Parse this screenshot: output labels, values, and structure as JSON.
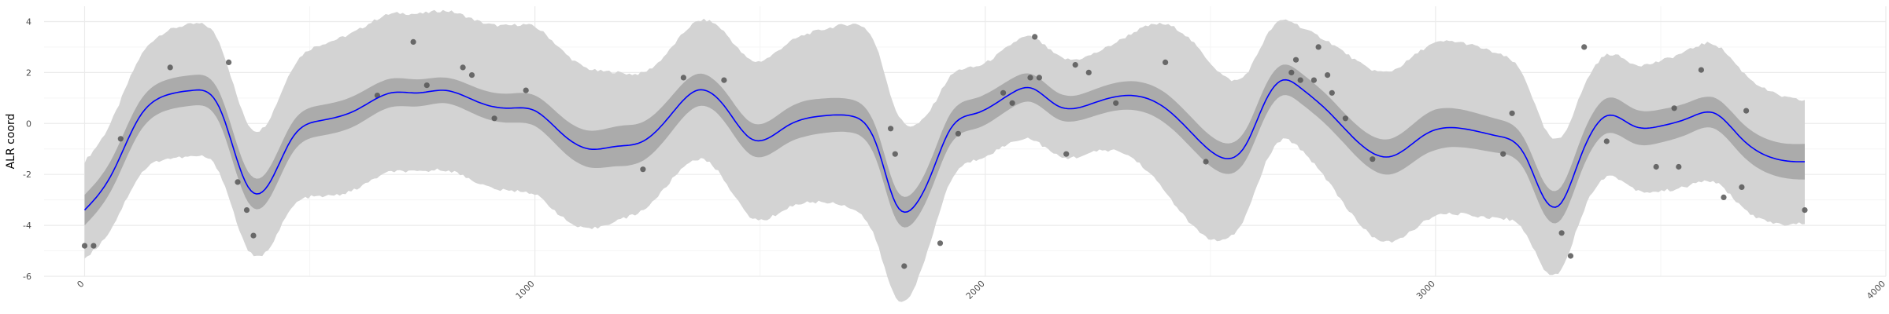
{
  "chart_data": {
    "type": "line",
    "title": "",
    "xlabel": "",
    "ylabel": "ALR coord",
    "xlim": [
      -90,
      4000
    ],
    "ylim": [
      -6,
      4.6
    ],
    "x_ticks": [
      0,
      1000,
      2000,
      3000,
      4000
    ],
    "x_tick_labels": [
      "0",
      "1000",
      "2000",
      "3000",
      "4000"
    ],
    "y_ticks": [
      -6,
      -4,
      -2,
      0,
      2,
      4
    ],
    "y_tick_labels": [
      "-6",
      "-4",
      "-2",
      "0",
      "2",
      "4"
    ],
    "grid": true,
    "colors": {
      "mean_line": "#0000ff",
      "inner_band": "#ababab",
      "outer_band": "#d3d3d3",
      "points": "#555555",
      "grid_major": "#ebebeb",
      "grid_minor": "#f5f5f5"
    },
    "series": [
      {
        "role": "mean",
        "x": [
          0,
          60,
          120,
          180,
          240,
          300,
          360,
          400,
          460,
          520,
          600,
          680,
          740,
          800,
          880,
          940,
          1000,
          1060,
          1120,
          1180,
          1240,
          1300,
          1360,
          1420,
          1480,
          1560,
          1640,
          1700,
          1760,
          1800,
          1840,
          1880,
          1920,
          1980,
          2060,
          2100,
          2160,
          2240,
          2320,
          2400,
          2460,
          2520,
          2580,
          2620,
          2660,
          2700,
          2760,
          2820,
          2900,
          2980,
          3060,
          3140,
          3200,
          3240,
          3280,
          3320,
          3380,
          3440,
          3500,
          3560,
          3620,
          3680,
          3740,
          3800,
          3820
        ],
        "y": [
          -3.4,
          -2.0,
          0.2,
          1.1,
          1.3,
          0.6,
          -2.4,
          -2.6,
          -0.6,
          0.1,
          0.5,
          1.2,
          1.2,
          1.3,
          0.8,
          0.6,
          0.5,
          -0.4,
          -1.0,
          -0.9,
          -0.7,
          0.3,
          1.3,
          0.7,
          -0.6,
          -0.1,
          0.3,
          0.3,
          -0.9,
          -3.1,
          -3.3,
          -2.0,
          -0.3,
          0.4,
          1.2,
          1.4,
          0.7,
          0.8,
          1.1,
          0.6,
          -0.4,
          -1.3,
          -0.8,
          0.8,
          1.7,
          1.4,
          0.5,
          -0.6,
          -1.3,
          -0.4,
          -0.2,
          -0.5,
          -1.3,
          -2.9,
          -3.1,
          -1.4,
          0.3,
          -0.1,
          -0.1,
          0.2,
          0.4,
          -0.6,
          -1.3,
          -1.5,
          -1.5
        ]
      },
      {
        "role": "inner_band_half_width",
        "x": [
          0,
          120,
          300,
          400,
          600,
          800,
          1000,
          1200,
          1400,
          1600,
          1800,
          1900,
          2000,
          2200,
          2400,
          2600,
          2800,
          3000,
          3200,
          3400,
          3600,
          3820
        ],
        "y": [
          0.6,
          0.6,
          0.6,
          0.6,
          0.6,
          0.5,
          0.6,
          0.8,
          0.6,
          0.7,
          0.6,
          0.6,
          0.6,
          0.5,
          0.6,
          0.6,
          0.6,
          0.8,
          0.6,
          0.7,
          0.6,
          0.7
        ]
      },
      {
        "role": "outer_band_half_width",
        "x": [
          0,
          120,
          240,
          400,
          500,
          700,
          900,
          1100,
          1300,
          1450,
          1600,
          1700,
          1800,
          1900,
          2100,
          2300,
          2450,
          2600,
          2700,
          2800,
          3000,
          3200,
          3300,
          3400,
          3600,
          3820
        ],
        "y": [
          1.9,
          2.3,
          2.6,
          2.5,
          2.9,
          3.1,
          3.2,
          3.2,
          2.6,
          3.0,
          3.3,
          3.6,
          3.7,
          2.3,
          2.0,
          2.2,
          3.6,
          2.6,
          2.4,
          3.0,
          3.4,
          3.0,
          2.5,
          2.4,
          2.7,
          2.4
        ]
      },
      {
        "role": "points",
        "x": [
          0,
          20,
          80,
          190,
          320,
          340,
          360,
          375,
          650,
          730,
          760,
          840,
          860,
          910,
          980,
          1240,
          1330,
          1420,
          1790,
          1800,
          1820,
          1900,
          1940,
          2040,
          2060,
          2100,
          2110,
          2120,
          2180,
          2200,
          2230,
          2290,
          2400,
          2490,
          2680,
          2690,
          2700,
          2730,
          2740,
          2760,
          2770,
          2800,
          2860,
          3150,
          3170,
          3280,
          3300,
          3330,
          3380,
          3490,
          3530,
          3540,
          3590,
          3640,
          3680,
          3690,
          3820
        ],
        "y": [
          -4.8,
          -4.8,
          -0.6,
          2.2,
          2.4,
          -2.3,
          -3.4,
          -4.4,
          1.1,
          3.2,
          1.5,
          2.2,
          1.9,
          0.2,
          1.3,
          -1.8,
          1.8,
          1.7,
          -0.2,
          -1.2,
          -5.6,
          -4.7,
          -0.4,
          1.2,
          0.8,
          1.8,
          3.4,
          1.8,
          -1.2,
          2.3,
          2.0,
          0.8,
          2.4,
          -1.5,
          2.0,
          2.5,
          1.7,
          1.7,
          3.0,
          1.9,
          1.2,
          0.2,
          -1.4,
          -1.2,
          0.4,
          -4.3,
          -5.2,
          3.0,
          -0.7,
          -1.7,
          0.6,
          -1.7,
          2.1,
          -2.9,
          -2.5,
          0.5,
          -3.4
        ]
      }
    ]
  }
}
